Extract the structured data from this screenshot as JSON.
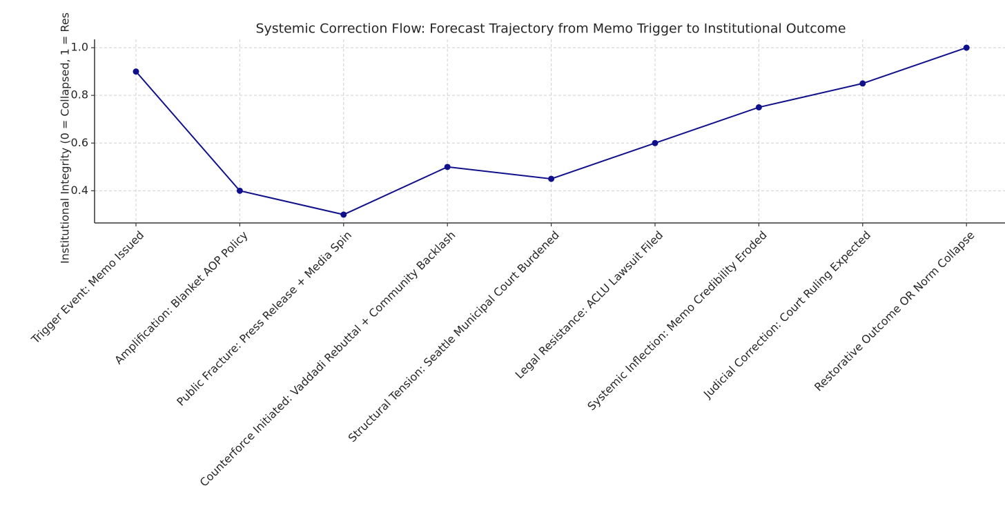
{
  "chart_data": {
    "type": "line",
    "title": "Systemic Correction Flow: Forecast Trajectory from Memo Trigger to Institutional Outcome",
    "y_label": "Institutional Integrity (0 = Collapsed, 1 = Res",
    "categories": [
      "Trigger Event: Memo Issued",
      "Amplification: Blanket AOP Policy",
      "Public Fracture: Press Release + Media Spin",
      "Counterforce Initiated: Vaddadi Rebuttal + Community Backlash",
      "Structural Tension: Seattle Municipal Court Burdened",
      "Legal Resistance: ACLU Lawsuit Filed",
      "Systemic Inflection: Memo Credibility Eroded",
      "Judicial Correction: Court Ruling Expected",
      "Restorative Outcome OR Norm Collapse"
    ],
    "values": [
      0.9,
      0.4,
      0.3,
      0.5,
      0.45,
      0.6,
      0.75,
      0.85,
      1.0
    ],
    "color": "#10108c",
    "ylim": [
      0.265,
      1.035
    ],
    "yticks": [
      0.4,
      0.6,
      0.8,
      {
        "value": 1.0,
        "label": "1.0"
      }
    ],
    "grid": true
  }
}
